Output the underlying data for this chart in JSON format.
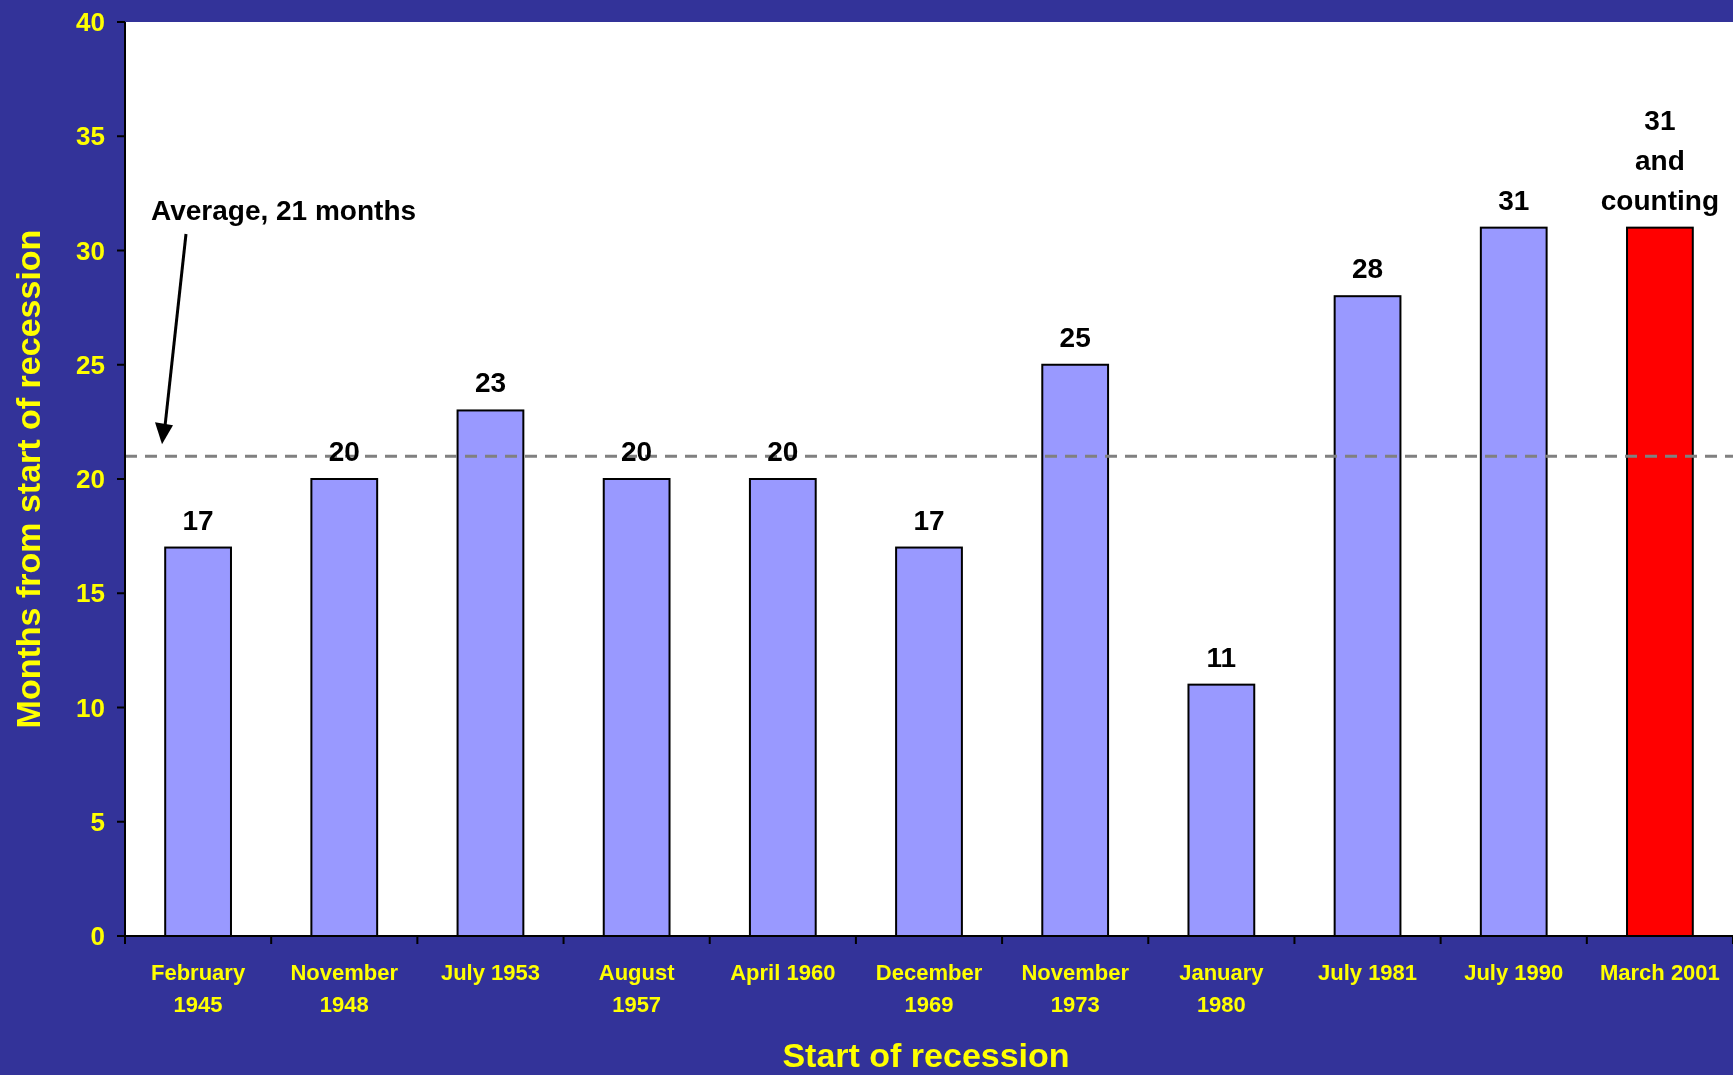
{
  "chart_data": {
    "type": "bar",
    "xlabel": "Start of recession",
    "ylabel": "Months from start of recession",
    "categories": [
      "February\n1945",
      "November\n1948",
      "July 1953",
      "August\n1957",
      "April 1960",
      "December\n1969",
      "November\n1973",
      "January\n1980",
      "July 1981",
      "July 1990",
      "March 2001"
    ],
    "values": [
      17,
      20,
      23,
      20,
      20,
      17,
      25,
      11,
      28,
      31,
      31
    ],
    "colors": [
      "#9999ff",
      "#9999ff",
      "#9999ff",
      "#9999ff",
      "#9999ff",
      "#9999ff",
      "#9999ff",
      "#9999ff",
      "#9999ff",
      "#9999ff",
      "#ff0000"
    ],
    "value_labels": [
      "17",
      "20",
      "23",
      "20",
      "20",
      "17",
      "25",
      "11",
      "28",
      "31",
      "31\nand\ncounting"
    ],
    "ylim": [
      0,
      40
    ],
    "yticks": [
      0,
      5,
      10,
      15,
      20,
      25,
      30,
      35,
      40
    ],
    "ref_lines": [
      {
        "axis": "y",
        "value": 21,
        "color": "#808080",
        "line_style": "dashed"
      }
    ],
    "annotations": [
      "Average, 21 months"
    ],
    "grid": false
  }
}
